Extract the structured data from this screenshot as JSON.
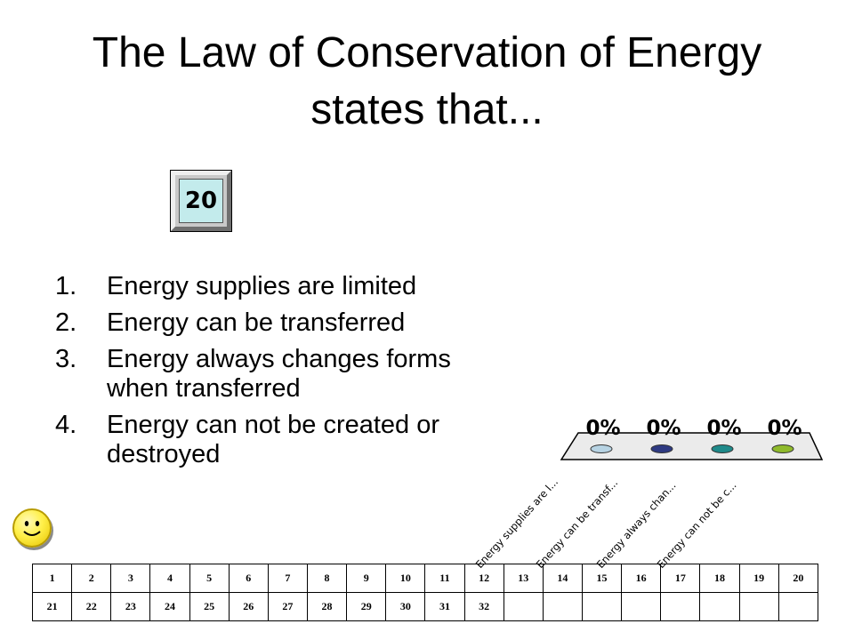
{
  "title": "The Law of Conservation of Energy states that...",
  "timer": {
    "value": "20"
  },
  "options": [
    {
      "number": "1.",
      "text": "Energy supplies are limited"
    },
    {
      "number": "2.",
      "text": "Energy can be transferred"
    },
    {
      "number": "3.",
      "text": "Energy always changes forms when transferred"
    },
    {
      "number": "4.",
      "text": "Energy can not be created or destroyed"
    }
  ],
  "chart_data": {
    "type": "bar",
    "categories": [
      "Energy supplies are l...",
      "Energy can be transf...",
      "Energy always chan...",
      "Energy can not be c..."
    ],
    "values": [
      0,
      0,
      0,
      0
    ],
    "value_labels": [
      "0%",
      "0%",
      "0%",
      "0%"
    ],
    "colors": [
      "#b7d3e3",
      "#2e3a82",
      "#1f8a8a",
      "#8fba2c"
    ],
    "ylim": [
      0,
      100
    ]
  },
  "response_grid": {
    "rows": [
      [
        "1",
        "2",
        "3",
        "4",
        "5",
        "6",
        "7",
        "8",
        "9",
        "10",
        "11",
        "12",
        "13",
        "14",
        "15",
        "16",
        "17",
        "18",
        "19",
        "20"
      ],
      [
        "21",
        "22",
        "23",
        "24",
        "25",
        "26",
        "27",
        "28",
        "29",
        "30",
        "31",
        "32",
        "",
        "",
        "",
        "",
        "",
        "",
        "",
        ""
      ]
    ]
  },
  "icons": {
    "status": "smiley-face-icon"
  }
}
